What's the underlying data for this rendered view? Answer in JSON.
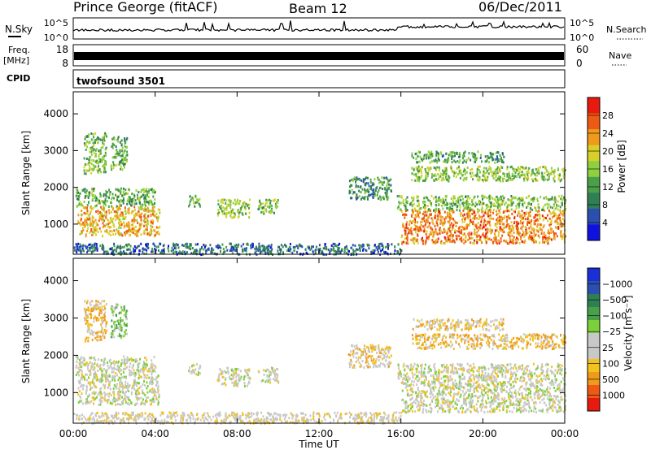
{
  "header": {
    "station": "Prince George (fitACF)",
    "beam": "Beam 12",
    "date": "06/Dec/2011"
  },
  "panels": {
    "nsky": {
      "left_label": "N.Sky",
      "right_label": "N.Search",
      "ticks": [
        "10^5",
        "10^0"
      ],
      "right_ticks": [
        "10^5",
        "10^0"
      ]
    },
    "freq": {
      "left_label_1": "Freq.",
      "left_label_2": "[MHz]",
      "right_label": "Nave",
      "ticks": [
        "18",
        "8"
      ],
      "right_ticks": [
        "60",
        "0"
      ]
    },
    "cpid": {
      "left_label": "CPID",
      "program": "twofsound 3501"
    }
  },
  "colors": {
    "power": [
      "#1010e0",
      "#2a4fb0",
      "#2f7f55",
      "#4aa048",
      "#8fd040",
      "#d8d02a",
      "#f09a1c",
      "#ee5a14",
      "#e81a10"
    ],
    "velocity": [
      "#e81a10",
      "#ee5a14",
      "#f09a1c",
      "#f3c21e",
      "#c8c8c8",
      "#c8c8c8",
      "#7cd03a",
      "#4aa048",
      "#2f7f55",
      "#2a4fb0",
      "#1a2fd8"
    ]
  },
  "chart_data": [
    {
      "type": "heatmap",
      "name": "power",
      "ylabel": "Slant Range [km]",
      "y_ticks": [
        1000,
        2000,
        3000,
        4000
      ],
      "ylim": [
        180,
        4600
      ],
      "xlim": [
        0,
        24
      ],
      "colorbar_label": "Power [dB]",
      "colorbar_ticks": [
        "4",
        "8",
        "12",
        "16",
        "20",
        "24",
        "28"
      ],
      "regions": [
        {
          "x": [
            0.5,
            1.6
          ],
          "y": [
            2400,
            3500
          ],
          "level": 0.45
        },
        {
          "x": [
            1.8,
            2.6
          ],
          "y": [
            2500,
            3400
          ],
          "level": 0.4
        },
        {
          "x": [
            0.1,
            4.0
          ],
          "y": [
            1500,
            2000
          ],
          "level": 0.4
        },
        {
          "x": [
            0.2,
            4.2
          ],
          "y": [
            700,
            1500
          ],
          "level": 0.7
        },
        {
          "x": [
            5.6,
            6.2
          ],
          "y": [
            1500,
            1800
          ],
          "level": 0.4
        },
        {
          "x": [
            7.0,
            8.6
          ],
          "y": [
            1200,
            1700
          ],
          "level": 0.5
        },
        {
          "x": [
            9.0,
            10.0
          ],
          "y": [
            1300,
            1700
          ],
          "level": 0.45
        },
        {
          "x": [
            13.4,
            15.5
          ],
          "y": [
            1700,
            2300
          ],
          "level": 0.3
        },
        {
          "x": [
            15.8,
            24.0
          ],
          "y": [
            1400,
            1800
          ],
          "level": 0.45
        },
        {
          "x": [
            16.0,
            24.0
          ],
          "y": [
            500,
            1400
          ],
          "level": 0.8
        },
        {
          "x": [
            16.5,
            24.0
          ],
          "y": [
            2200,
            2600
          ],
          "level": 0.5
        },
        {
          "x": [
            16.5,
            21.0
          ],
          "y": [
            2700,
            3000
          ],
          "level": 0.35
        },
        {
          "x": [
            0.0,
            16.0
          ],
          "y": [
            200,
            500
          ],
          "level": 0.2
        }
      ]
    },
    {
      "type": "heatmap",
      "name": "velocity",
      "ylabel": "Slant Range [km]",
      "y_ticks": [
        1000,
        2000,
        3000,
        4000
      ],
      "ylim": [
        180,
        4600
      ],
      "xlim": [
        0,
        24
      ],
      "xlabel": "Time UT",
      "x_ticks": [
        "00:00",
        "04:00",
        "08:00",
        "12:00",
        "16:00",
        "20:00",
        "00:00"
      ],
      "colorbar_label": "Velocity [m s⁻¹]",
      "colorbar_ticks": [
        "1000",
        "500",
        "100",
        "25",
        "−25",
        "−100",
        "−500",
        "−1000"
      ],
      "regions": [
        {
          "x": [
            0.5,
            1.6
          ],
          "y": [
            2400,
            3500
          ],
          "level": 0.3
        },
        {
          "x": [
            1.8,
            2.6
          ],
          "y": [
            2500,
            3400
          ],
          "level": 0.6
        },
        {
          "x": [
            0.1,
            4.0
          ],
          "y": [
            1500,
            2000
          ],
          "level": 0.5
        },
        {
          "x": [
            0.2,
            4.2
          ],
          "y": [
            700,
            1500
          ],
          "level": 0.55
        },
        {
          "x": [
            5.6,
            6.2
          ],
          "y": [
            1500,
            1800
          ],
          "level": 0.55
        },
        {
          "x": [
            7.0,
            8.6
          ],
          "y": [
            1200,
            1700
          ],
          "level": 0.45
        },
        {
          "x": [
            9.0,
            10.0
          ],
          "y": [
            1300,
            1700
          ],
          "level": 0.55
        },
        {
          "x": [
            13.4,
            15.5
          ],
          "y": [
            1700,
            2300
          ],
          "level": 0.35
        },
        {
          "x": [
            15.8,
            24.0
          ],
          "y": [
            1400,
            1800
          ],
          "level": 0.5
        },
        {
          "x": [
            16.0,
            24.0
          ],
          "y": [
            500,
            1400
          ],
          "level": 0.5
        },
        {
          "x": [
            16.5,
            24.0
          ],
          "y": [
            2200,
            2600
          ],
          "level": 0.3
        },
        {
          "x": [
            16.5,
            21.0
          ],
          "y": [
            2700,
            3000
          ],
          "level": 0.35
        },
        {
          "x": [
            0.0,
            16.0
          ],
          "y": [
            200,
            500
          ],
          "level": 0.4
        }
      ]
    }
  ]
}
